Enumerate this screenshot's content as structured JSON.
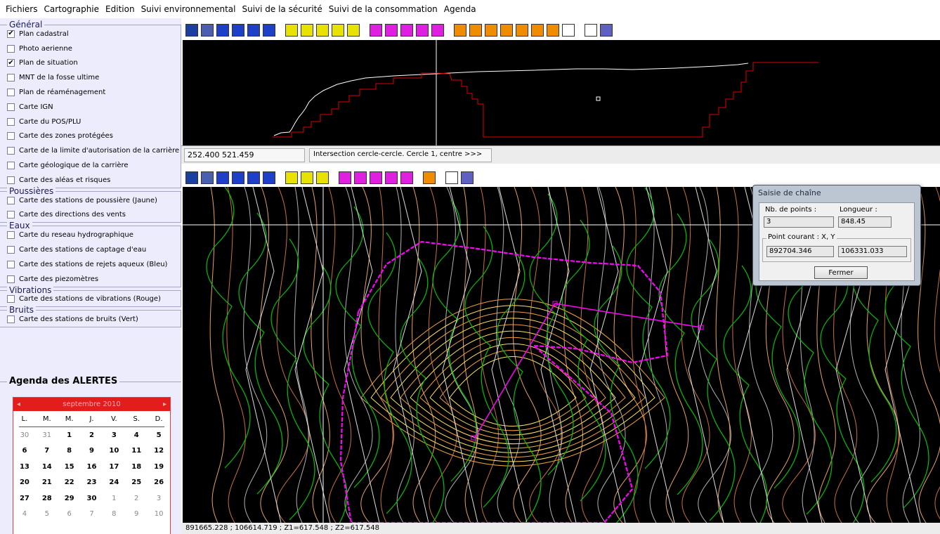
{
  "menu": [
    "Fichiers",
    "Cartographie",
    "Edition",
    "Suivi environnemental",
    "Suivi de la sécurité",
    "Suivi de la consommation",
    "Agenda"
  ],
  "groups": [
    {
      "title": "Général",
      "items": [
        {
          "label": "Plan cadastral",
          "checked": true
        },
        {
          "label": "Photo aerienne",
          "checked": false
        },
        {
          "label": "Plan de situation",
          "checked": true
        },
        {
          "label": "MNT de la fosse ultime",
          "checked": false
        },
        {
          "label": "Plan de réaménagement",
          "checked": false
        },
        {
          "label": "Carte IGN",
          "checked": false
        },
        {
          "label": "Carte du POS/PLU",
          "checked": false
        },
        {
          "label": "Carte des zones protégées",
          "checked": false
        },
        {
          "label": "Carte de la limite d'autorisation de la carrière",
          "checked": false
        },
        {
          "label": "Carte géologique de la carrière",
          "checked": false
        },
        {
          "label": "Carte des aléas et risques",
          "checked": false
        }
      ]
    },
    {
      "title": "Poussières",
      "items": [
        {
          "label": "Carte des stations de poussière (Jaune)",
          "checked": false
        },
        {
          "label": "Carte des directions des vents",
          "checked": false
        }
      ]
    },
    {
      "title": "Eaux",
      "items": [
        {
          "label": "Carte du reseau hydrographique",
          "checked": false
        },
        {
          "label": "Carte des stations de captage d'eau",
          "checked": false
        },
        {
          "label": "Carte des stations de rejets aqueux (Bleu)",
          "checked": false
        },
        {
          "label": "Carte des piezomètres",
          "checked": false
        }
      ]
    },
    {
      "title": "Vibrations",
      "items": [
        {
          "label": "Carte des stations de vibrations (Rouge)",
          "checked": false
        }
      ]
    },
    {
      "title": "Bruits",
      "items": [
        {
          "label": "Carte des stations de bruits (Vert)",
          "checked": false
        }
      ]
    }
  ],
  "agenda": {
    "title": "Agenda des ALERTES",
    "month": "septembre 2010",
    "prev_icon": "arrow-left-icon",
    "next_icon": "arrow-right-icon",
    "days_of_week": [
      "L.",
      "M.",
      "M.",
      "J.",
      "V.",
      "S.",
      "D."
    ],
    "weeks": [
      [
        {
          "d": "30",
          "o": true
        },
        {
          "d": "31",
          "o": true
        },
        {
          "d": "1"
        },
        {
          "d": "2"
        },
        {
          "d": "3"
        },
        {
          "d": "4"
        },
        {
          "d": "5"
        }
      ],
      [
        {
          "d": "6"
        },
        {
          "d": "7"
        },
        {
          "d": "8"
        },
        {
          "d": "9"
        },
        {
          "d": "10"
        },
        {
          "d": "11"
        },
        {
          "d": "12"
        }
      ],
      [
        {
          "d": "13"
        },
        {
          "d": "14"
        },
        {
          "d": "15"
        },
        {
          "d": "16"
        },
        {
          "d": "17"
        },
        {
          "d": "18"
        },
        {
          "d": "19"
        }
      ],
      [
        {
          "d": "20"
        },
        {
          "d": "21"
        },
        {
          "d": "22"
        },
        {
          "d": "23"
        },
        {
          "d": "24"
        },
        {
          "d": "25"
        },
        {
          "d": "26"
        }
      ],
      [
        {
          "d": "27"
        },
        {
          "d": "28"
        },
        {
          "d": "29"
        },
        {
          "d": "30"
        },
        {
          "d": "1",
          "o": true
        },
        {
          "d": "2",
          "o": true
        },
        {
          "d": "3",
          "o": true
        }
      ],
      [
        {
          "d": "4",
          "o": true
        },
        {
          "d": "5",
          "o": true
        },
        {
          "d": "6",
          "o": true
        },
        {
          "d": "7",
          "o": true
        },
        {
          "d": "8",
          "o": true
        },
        {
          "d": "9",
          "o": true
        },
        {
          "d": "10",
          "o": true
        }
      ]
    ]
  },
  "toolbar_top": {
    "groups": [
      [
        {
          "icon": "table-icon",
          "c": "#1b3fa0"
        },
        {
          "icon": "grid-icon",
          "c": "#4a5fb0"
        },
        {
          "icon": "zoom-in-icon",
          "c": "#1e40c8"
        },
        {
          "icon": "zoom-out-icon",
          "c": "#1e40c8"
        },
        {
          "icon": "pan-icon",
          "c": "#1e40c8"
        },
        {
          "icon": "window-icon",
          "c": "#1e40c8"
        }
      ],
      [
        {
          "icon": "draw-polygon-icon",
          "c": "#e8e200"
        },
        {
          "icon": "measure-icon",
          "c": "#e8e200"
        },
        {
          "icon": "cursor-icon",
          "c": "#e8e200"
        },
        {
          "icon": "circle-icon",
          "c": "#e8e200"
        },
        {
          "icon": "polyline-icon",
          "c": "#e8e200"
        }
      ],
      [
        {
          "icon": "select-icon",
          "c": "#e020e0"
        },
        {
          "icon": "layer-icon",
          "c": "#e020e0"
        },
        {
          "icon": "layer-edit-icon",
          "c": "#e020e0"
        },
        {
          "icon": "grid-edit-icon",
          "c": "#e020e0"
        },
        {
          "icon": "cross-grid-icon",
          "c": "#e020e0"
        }
      ],
      [
        {
          "icon": "point-icon",
          "c": "#f08c00"
        },
        {
          "icon": "line-icon",
          "c": "#f08c00"
        },
        {
          "icon": "arc-icon",
          "c": "#f08c00"
        },
        {
          "icon": "circle-tool-icon",
          "c": "#f08c00"
        },
        {
          "icon": "flag-icon",
          "c": "#f08c00"
        },
        {
          "icon": "hatch-icon",
          "c": "#f08c00"
        },
        {
          "icon": "fill-icon",
          "c": "#f08c00"
        },
        {
          "icon": "eraser-icon",
          "c": "#ffffff"
        }
      ],
      [
        {
          "icon": "print-icon",
          "c": "#ffffff"
        },
        {
          "icon": "gear-icon",
          "c": "#6060c0"
        }
      ]
    ]
  },
  "toolbar_map": {
    "groups": [
      [
        {
          "icon": "table-icon",
          "c": "#1b3fa0"
        },
        {
          "icon": "grid-icon",
          "c": "#4a5fb0"
        },
        {
          "icon": "zoom-in-icon",
          "c": "#1e40c8"
        },
        {
          "icon": "zoom-out-icon",
          "c": "#1e40c8"
        },
        {
          "icon": "pan-icon",
          "c": "#1e40c8"
        },
        {
          "icon": "window-icon",
          "c": "#1e40c8"
        }
      ],
      [
        {
          "icon": "measure-icon",
          "c": "#e8e200"
        },
        {
          "icon": "cursor-icon",
          "c": "#e8e200"
        },
        {
          "icon": "circle-icon",
          "c": "#e8e200"
        }
      ],
      [
        {
          "icon": "select-icon",
          "c": "#e020e0"
        },
        {
          "icon": "layer-icon",
          "c": "#e020e0"
        },
        {
          "icon": "layer-edit-icon",
          "c": "#e020e0"
        },
        {
          "icon": "grid-edit-icon",
          "c": "#e020e0"
        },
        {
          "icon": "cross-grid-icon",
          "c": "#e020e0"
        }
      ],
      [
        {
          "icon": "fill-icon",
          "c": "#f08c00"
        }
      ],
      [
        {
          "icon": "print-icon",
          "c": "#ffffff"
        },
        {
          "icon": "gear-icon",
          "c": "#6060c0"
        }
      ]
    ]
  },
  "status": {
    "coords": "252.400  521.459",
    "message": "Intersection cercle-cercle. Cercle 1, centre >>>",
    "bottom": "891665.228 ; 106614.719 ; Z1=617.548 ; Z2=617.548"
  },
  "dialog": {
    "title": "Saisie de chaîne",
    "nb_points_label": "Nb. de points :",
    "nb_points": "3",
    "longueur_label": "Longueur :",
    "longueur": "848.45",
    "point_courant_label": "Point courant : X, Y",
    "x": "892704.346",
    "y": "106331.033",
    "close_label": "Fermer"
  },
  "colors": {
    "panel": "#ececfc",
    "map_bg": "#000000",
    "profile_terrain": "#e00000",
    "profile_ground": "#ffffff",
    "chain": "#ff00ff",
    "contours": "#d4884a",
    "vegetation": "#00c000"
  }
}
